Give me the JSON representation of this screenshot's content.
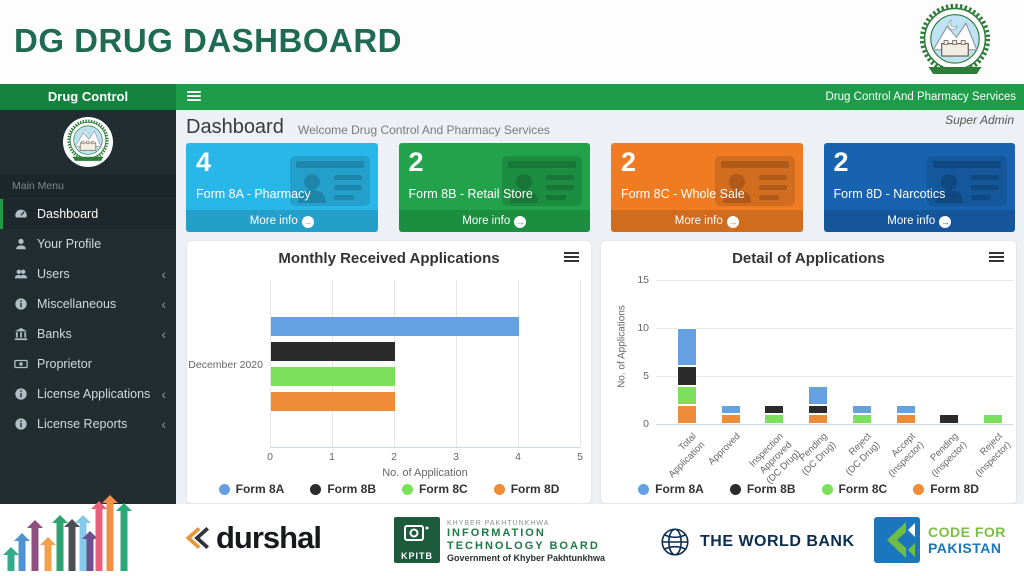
{
  "page": {
    "title": "DG DRUG DASHBOARD"
  },
  "navbar": {
    "brand": "Drug Control",
    "right_text": "Drug Control And Pharmacy Services"
  },
  "content_header": {
    "title": "Dashboard",
    "subtitle": "Welcome Drug Control And Pharmacy Services",
    "user_role": "Super Admin"
  },
  "sidebar": {
    "section_label": "Main Menu",
    "items": [
      {
        "label": "Dashboard",
        "icon": "dashboard-icon",
        "active": true,
        "expandable": false
      },
      {
        "label": "Your Profile",
        "icon": "user-icon",
        "active": false,
        "expandable": false
      },
      {
        "label": "Users",
        "icon": "users-icon",
        "active": false,
        "expandable": true
      },
      {
        "label": "Miscellaneous",
        "icon": "info-circle-icon",
        "active": false,
        "expandable": true
      },
      {
        "label": "Banks",
        "icon": "bank-icon",
        "active": false,
        "expandable": true
      },
      {
        "label": "Proprietor",
        "icon": "money-icon",
        "active": false,
        "expandable": false
      },
      {
        "label": "License Applications",
        "icon": "info-circle-icon",
        "active": false,
        "expandable": true
      },
      {
        "label": "License Reports",
        "icon": "info-circle-icon",
        "active": false,
        "expandable": true
      }
    ]
  },
  "stat_cards": [
    {
      "value": "4",
      "label": "Form 8A - Pharmacy",
      "more_label": "More info",
      "color": "#29b7e9"
    },
    {
      "value": "2",
      "label": "Form 8B - Retail Store",
      "more_label": "More info",
      "color": "#22a24a"
    },
    {
      "value": "2",
      "label": "Form 8C - Whole Sale",
      "more_label": "More info",
      "color": "#ef7c23"
    },
    {
      "value": "2",
      "label": "Form 8D - Narcotics",
      "more_label": "More info",
      "color": "#1763b0"
    }
  ],
  "chart_data": [
    {
      "type": "bar",
      "orientation": "horizontal",
      "title": "Monthly Received Applications",
      "categories": [
        "December 2020"
      ],
      "series": [
        {
          "name": "Form 8A",
          "color": "#64a0e2",
          "values": [
            4
          ]
        },
        {
          "name": "Form 8B",
          "color": "#2b2b2b",
          "values": [
            2
          ]
        },
        {
          "name": "Form 8C",
          "color": "#7de05c",
          "values": [
            2
          ]
        },
        {
          "name": "Form 8D",
          "color": "#ef8c3a",
          "values": [
            2
          ]
        }
      ],
      "xlabel": "No. of Application",
      "xlim": [
        0,
        5
      ],
      "x_ticks": [
        0,
        1,
        2,
        3,
        4,
        5
      ],
      "grid": true,
      "legend_position": "bottom"
    },
    {
      "type": "bar",
      "orientation": "vertical",
      "stacked": true,
      "title": "Detail of Applications",
      "categories": [
        "Total Application",
        "Approved",
        "Inspection Approved (DC Drug)",
        "Pending (DC Drug)",
        "Reject (DC Drug)",
        "Accept (Inspector)",
        "Pending (Inspector)",
        "Reject (Inspector)"
      ],
      "category_label_lines": [
        [
          "Total",
          "Application"
        ],
        [
          "Approved"
        ],
        [
          "Inspection",
          "Approved",
          "(DC Drug)"
        ],
        [
          "Pending",
          "(DC Drug)"
        ],
        [
          "Reject",
          "(DC Drug)"
        ],
        [
          "Accept",
          "(Inspector)"
        ],
        [
          "Pending",
          "(Inspector)"
        ],
        [
          "Reject",
          "(Inspector)"
        ]
      ],
      "series": [
        {
          "name": "Form 8A",
          "color": "#64a0e2",
          "values": [
            4,
            1,
            0,
            2,
            1,
            1,
            0,
            0
          ]
        },
        {
          "name": "Form 8B",
          "color": "#2b2b2b",
          "values": [
            2,
            0,
            1,
            1,
            0,
            0,
            1,
            0
          ]
        },
        {
          "name": "Form 8C",
          "color": "#7de05c",
          "values": [
            2,
            0,
            1,
            0,
            1,
            0,
            0,
            1
          ]
        },
        {
          "name": "Form 8D",
          "color": "#ef8c3a",
          "values": [
            2,
            1,
            0,
            1,
            0,
            1,
            0,
            0
          ]
        }
      ],
      "stack_order_bottom_to_top": [
        "Form 8D",
        "Form 8C",
        "Form 8B",
        "Form 8A"
      ],
      "ylabel": "No. of Applications",
      "ylim": [
        0,
        15
      ],
      "y_ticks": [
        0,
        5,
        10,
        15
      ],
      "grid": true,
      "legend_position": "bottom"
    }
  ],
  "footer": {
    "durshal_text": "durshal",
    "kpitb": {
      "abbr": "KPITB",
      "line1": "KHYBER PAKHTUNKHWA",
      "line2": "INFORMATION",
      "line3": "TECHNOLOGY BOARD",
      "line4": "Government of Khyber Pakhtunkhwa"
    },
    "worldbank_text": "THE WORLD BANK",
    "cfp": {
      "line1": "CODE FOR",
      "line2": "PAKISTAN"
    }
  },
  "colors": {
    "navbar_green": "#1f9c4a",
    "brand_green": "#15813e",
    "title_green": "#1e6a52",
    "sidebar_bg": "#222d32",
    "content_bg": "#edf0f4"
  }
}
